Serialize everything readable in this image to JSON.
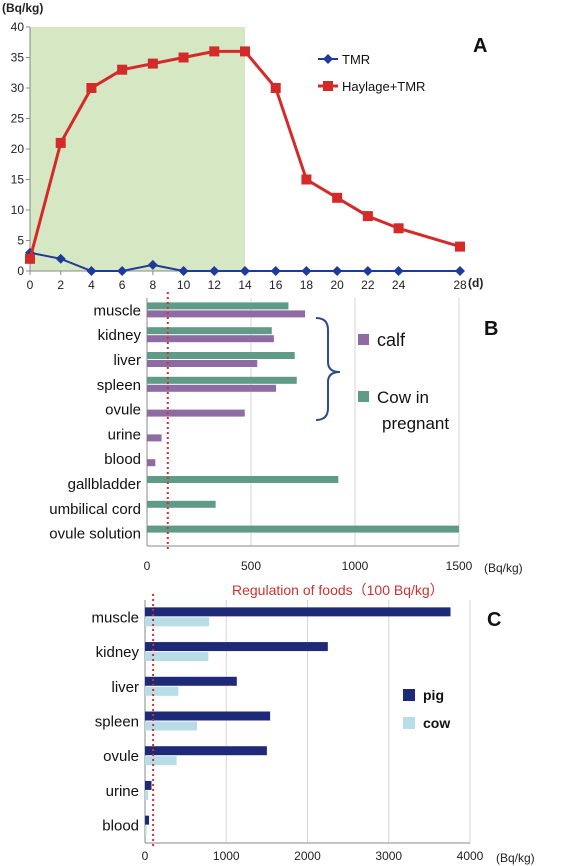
{
  "figure": {
    "reg_label": "Regulation of foods（100 Bq/kg）",
    "reg_value": 100
  },
  "colors": {
    "tmr": "#1f3a9a",
    "haylage": "#d42a2a",
    "shade": "#d6e8c3",
    "calf": "#8e6ba3",
    "cow_pregnant": "#5f9b86",
    "pig": "#1e2a78",
    "cow": "#b8dde6",
    "regulation": "#d03030",
    "bracket": "#2b4c8c"
  },
  "chart_data": [
    {
      "id": "A",
      "panel_label": "A",
      "type": "line",
      "ylabel": "(Bq/kg)",
      "xlabel": "(d)",
      "x": [
        0,
        2,
        4,
        6,
        8,
        10,
        12,
        14,
        16,
        18,
        20,
        22,
        24,
        28
      ],
      "x_ticks": [
        0,
        2,
        4,
        6,
        8,
        10,
        12,
        14,
        16,
        18,
        20,
        22,
        24,
        28
      ],
      "y_ticks": [
        0,
        5,
        10,
        15,
        20,
        25,
        30,
        35,
        40
      ],
      "xlim": [
        0,
        28
      ],
      "ylim": [
        0,
        40
      ],
      "shaded_x_range": [
        0,
        14
      ],
      "legend_position": "top-right",
      "grid": false,
      "series": [
        {
          "name": "TMR",
          "marker": "diamond",
          "values": [
            3,
            2,
            0,
            0,
            1,
            0,
            0,
            0,
            0,
            0,
            0,
            0,
            0,
            0
          ]
        },
        {
          "name": "Haylage+TMR",
          "marker": "square",
          "values": [
            2,
            21,
            30,
            33,
            34,
            35,
            36,
            36,
            30,
            15,
            12,
            9,
            7,
            4
          ]
        }
      ]
    },
    {
      "id": "B",
      "panel_label": "B",
      "type": "bar",
      "orientation": "horizontal",
      "xlabel": "(Bq/kg)",
      "categories": [
        "muscle",
        "kidney",
        "liver",
        "spleen",
        "ovule",
        "urine",
        "blood",
        "gallbladder",
        "umbilical cord",
        "ovule solution"
      ],
      "x_ticks": [
        0,
        500,
        1000,
        1500
      ],
      "xlim": [
        0,
        1500
      ],
      "grid": true,
      "legend_position": "right",
      "series": [
        {
          "name": "calf",
          "values": [
            760,
            610,
            530,
            620,
            470,
            70,
            40,
            null,
            null,
            null
          ]
        },
        {
          "name": "Cow in pregnant",
          "values": [
            680,
            600,
            710,
            720,
            null,
            null,
            null,
            920,
            330,
            1500
          ]
        }
      ]
    },
    {
      "id": "C",
      "panel_label": "C",
      "type": "bar",
      "orientation": "horizontal",
      "xlabel": "(Bq/kg)",
      "categories": [
        "muscle",
        "kidney",
        "liver",
        "spleen",
        "ovule",
        "urine",
        "blood"
      ],
      "x_ticks": [
        0,
        1000,
        2000,
        3000,
        4000
      ],
      "xlim": [
        0,
        4000
      ],
      "grid": true,
      "legend_position": "right",
      "series": [
        {
          "name": "pig",
          "values": [
            3760,
            2250,
            1130,
            1540,
            1500,
            80,
            50
          ]
        },
        {
          "name": "cow",
          "values": [
            790,
            780,
            410,
            640,
            390,
            40,
            20
          ]
        }
      ]
    }
  ]
}
